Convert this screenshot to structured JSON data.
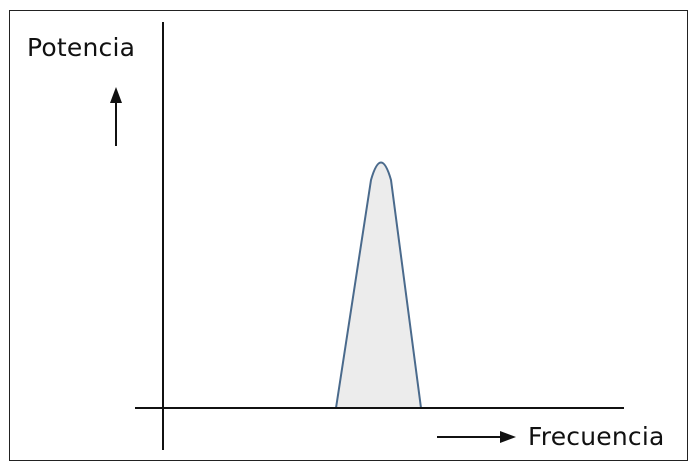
{
  "diagram": {
    "y_axis_label": "Potencia",
    "x_axis_label": "Frecuencia",
    "colors": {
      "axis": "#111111",
      "curve_stroke": "#4a6a8c",
      "curve_fill": "#ececec"
    }
  }
}
